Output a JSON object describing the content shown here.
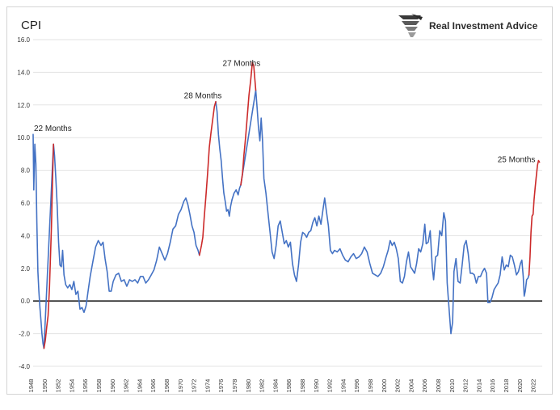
{
  "chart_data": {
    "type": "line",
    "title": "CPI",
    "xlabel": "",
    "ylabel": "",
    "ylim": [
      -4.0,
      16.0
    ],
    "xlim": [
      1948,
      2023
    ],
    "y_ticks": [
      "-4.0",
      "-2.0",
      "0.0",
      "2.0",
      "4.0",
      "6.0",
      "8.0",
      "10.0",
      "12.0",
      "14.0",
      "16.0"
    ],
    "x_ticks": [
      "1948",
      "1950",
      "1952",
      "1954",
      "1956",
      "1958",
      "1960",
      "1962",
      "1964",
      "1966",
      "1968",
      "1970",
      "1972",
      "1974",
      "1976",
      "1978",
      "1980",
      "1982",
      "1984",
      "1986",
      "1988",
      "1990",
      "1992",
      "1994",
      "1996",
      "1998",
      "2000",
      "2002",
      "2004",
      "2006",
      "2008",
      "2010",
      "2012",
      "2014",
      "2016",
      "2018",
      "2020",
      "2022"
    ],
    "grid": true,
    "reference_line": 0,
    "series": [
      {
        "color": "#4472c4",
        "points": [
          [
            1948.0,
            10.2
          ],
          [
            1948.1,
            6.8
          ],
          [
            1948.25,
            9.6
          ],
          [
            1948.4,
            8.4
          ],
          [
            1948.55,
            4.8
          ],
          [
            1948.7,
            1.8
          ],
          [
            1948.85,
            0.6
          ],
          [
            1949.0,
            -0.4
          ],
          [
            1949.15,
            -1.2
          ],
          [
            1949.3,
            -2.0
          ],
          [
            1949.45,
            -2.6
          ],
          [
            1949.6,
            -2.9
          ],
          [
            1951.0,
            9.6
          ],
          [
            1951.15,
            8.9
          ],
          [
            1951.35,
            7.5
          ],
          [
            1951.55,
            5.8
          ],
          [
            1951.75,
            3.6
          ],
          [
            1951.95,
            2.2
          ],
          [
            1952.15,
            2.1
          ],
          [
            1952.35,
            3.1
          ],
          [
            1952.55,
            1.6
          ],
          [
            1952.8,
            1.0
          ],
          [
            1953.1,
            0.8
          ],
          [
            1953.4,
            1.0
          ],
          [
            1953.7,
            0.7
          ],
          [
            1954.0,
            1.2
          ],
          [
            1954.3,
            0.4
          ],
          [
            1954.6,
            0.6
          ],
          [
            1954.9,
            -0.5
          ],
          [
            1955.2,
            -0.4
          ],
          [
            1955.5,
            -0.7
          ],
          [
            1955.8,
            -0.3
          ],
          [
            1956.1,
            0.6
          ],
          [
            1956.4,
            1.5
          ],
          [
            1956.8,
            2.4
          ],
          [
            1957.2,
            3.3
          ],
          [
            1957.6,
            3.7
          ],
          [
            1958.0,
            3.4
          ],
          [
            1958.3,
            3.6
          ],
          [
            1958.6,
            2.6
          ],
          [
            1958.9,
            1.8
          ],
          [
            1959.2,
            0.6
          ],
          [
            1959.5,
            0.6
          ],
          [
            1959.8,
            1.2
          ],
          [
            1960.2,
            1.6
          ],
          [
            1960.6,
            1.7
          ],
          [
            1961.0,
            1.2
          ],
          [
            1961.4,
            1.3
          ],
          [
            1961.8,
            0.9
          ],
          [
            1962.2,
            1.3
          ],
          [
            1962.6,
            1.2
          ],
          [
            1963.0,
            1.3
          ],
          [
            1963.4,
            1.1
          ],
          [
            1963.8,
            1.5
          ],
          [
            1964.2,
            1.5
          ],
          [
            1964.6,
            1.1
          ],
          [
            1965.0,
            1.3
          ],
          [
            1965.4,
            1.6
          ],
          [
            1965.8,
            1.9
          ],
          [
            1966.2,
            2.5
          ],
          [
            1966.6,
            3.3
          ],
          [
            1967.0,
            2.9
          ],
          [
            1967.4,
            2.5
          ],
          [
            1967.8,
            2.9
          ],
          [
            1968.2,
            3.6
          ],
          [
            1968.6,
            4.4
          ],
          [
            1969.0,
            4.6
          ],
          [
            1969.4,
            5.3
          ],
          [
            1969.8,
            5.6
          ],
          [
            1970.2,
            6.1
          ],
          [
            1970.5,
            6.3
          ],
          [
            1970.8,
            5.9
          ],
          [
            1971.1,
            5.3
          ],
          [
            1971.4,
            4.6
          ],
          [
            1971.7,
            4.2
          ],
          [
            1972.0,
            3.4
          ],
          [
            1972.3,
            3.1
          ],
          [
            1972.5,
            2.8
          ],
          [
            1977.3,
            6.2
          ],
          [
            1977.6,
            6.6
          ],
          [
            1977.9,
            6.8
          ],
          [
            1978.2,
            6.5
          ],
          [
            1978.4,
            6.9
          ],
          [
            1978.6,
            7.1
          ],
          [
            1980.8,
            12.9
          ],
          [
            1981.0,
            11.8
          ],
          [
            1981.2,
            10.6
          ],
          [
            1981.4,
            9.8
          ],
          [
            1981.6,
            11.2
          ],
          [
            1981.8,
            9.8
          ],
          [
            1982.0,
            7.5
          ],
          [
            1982.3,
            6.6
          ],
          [
            1982.6,
            5.4
          ],
          [
            1982.9,
            4.2
          ],
          [
            1983.2,
            3.0
          ],
          [
            1983.5,
            2.6
          ],
          [
            1983.8,
            3.4
          ],
          [
            1984.1,
            4.6
          ],
          [
            1984.4,
            4.9
          ],
          [
            1984.7,
            4.2
          ],
          [
            1985.0,
            3.5
          ],
          [
            1985.3,
            3.7
          ],
          [
            1985.6,
            3.3
          ],
          [
            1985.9,
            3.6
          ],
          [
            1986.2,
            2.3
          ],
          [
            1986.5,
            1.6
          ],
          [
            1986.8,
            1.2
          ],
          [
            1987.1,
            2.2
          ],
          [
            1987.4,
            3.6
          ],
          [
            1987.7,
            4.2
          ],
          [
            1988.0,
            4.1
          ],
          [
            1988.3,
            3.9
          ],
          [
            1988.6,
            4.2
          ],
          [
            1988.9,
            4.3
          ],
          [
            1989.2,
            4.8
          ],
          [
            1989.5,
            5.1
          ],
          [
            1989.8,
            4.6
          ],
          [
            1990.1,
            5.2
          ],
          [
            1990.4,
            4.7
          ],
          [
            1990.7,
            5.6
          ],
          [
            1990.95,
            6.3
          ],
          [
            1991.2,
            5.5
          ],
          [
            1991.5,
            4.6
          ],
          [
            1991.8,
            3.1
          ],
          [
            1992.1,
            2.9
          ],
          [
            1992.4,
            3.1
          ],
          [
            1992.8,
            3.0
          ],
          [
            1993.2,
            3.2
          ],
          [
            1993.6,
            2.8
          ],
          [
            1994.0,
            2.5
          ],
          [
            1994.4,
            2.4
          ],
          [
            1994.8,
            2.7
          ],
          [
            1995.2,
            2.9
          ],
          [
            1995.6,
            2.6
          ],
          [
            1996.0,
            2.7
          ],
          [
            1996.4,
            2.9
          ],
          [
            1996.8,
            3.3
          ],
          [
            1997.2,
            3.0
          ],
          [
            1997.6,
            2.3
          ],
          [
            1998.0,
            1.7
          ],
          [
            1998.4,
            1.6
          ],
          [
            1998.8,
            1.5
          ],
          [
            1999.2,
            1.7
          ],
          [
            1999.6,
            2.1
          ],
          [
            2000.0,
            2.7
          ],
          [
            2000.3,
            3.1
          ],
          [
            2000.6,
            3.7
          ],
          [
            2000.9,
            3.4
          ],
          [
            2001.2,
            3.6
          ],
          [
            2001.5,
            3.2
          ],
          [
            2001.8,
            2.6
          ],
          [
            2002.1,
            1.2
          ],
          [
            2002.4,
            1.1
          ],
          [
            2002.7,
            1.5
          ],
          [
            2003.0,
            2.4
          ],
          [
            2003.3,
            3.0
          ],
          [
            2003.6,
            2.1
          ],
          [
            2003.9,
            1.9
          ],
          [
            2004.2,
            1.7
          ],
          [
            2004.5,
            2.3
          ],
          [
            2004.8,
            3.2
          ],
          [
            2005.1,
            3.0
          ],
          [
            2005.4,
            3.5
          ],
          [
            2005.7,
            4.7
          ],
          [
            2005.9,
            3.5
          ],
          [
            2006.2,
            3.6
          ],
          [
            2006.5,
            4.3
          ],
          [
            2006.8,
            2.1
          ],
          [
            2007.0,
            1.3
          ],
          [
            2007.3,
            2.7
          ],
          [
            2007.6,
            2.8
          ],
          [
            2007.9,
            4.3
          ],
          [
            2008.2,
            4.0
          ],
          [
            2008.5,
            5.4
          ],
          [
            2008.75,
            4.9
          ],
          [
            2009.0,
            1.1
          ],
          [
            2009.3,
            -0.6
          ],
          [
            2009.55,
            -2.0
          ],
          [
            2009.8,
            -1.3
          ],
          [
            2010.0,
            1.8
          ],
          [
            2010.3,
            2.6
          ],
          [
            2010.6,
            1.2
          ],
          [
            2010.9,
            1.1
          ],
          [
            2011.2,
            2.2
          ],
          [
            2011.5,
            3.4
          ],
          [
            2011.8,
            3.7
          ],
          [
            2012.1,
            2.9
          ],
          [
            2012.4,
            1.7
          ],
          [
            2012.7,
            1.7
          ],
          [
            2013.0,
            1.6
          ],
          [
            2013.3,
            1.1
          ],
          [
            2013.6,
            1.5
          ],
          [
            2013.9,
            1.5
          ],
          [
            2014.2,
            1.8
          ],
          [
            2014.5,
            2.0
          ],
          [
            2014.8,
            1.7
          ],
          [
            2015.0,
            -0.1
          ],
          [
            2015.3,
            -0.1
          ],
          [
            2015.6,
            0.2
          ],
          [
            2015.9,
            0.7
          ],
          [
            2016.2,
            0.9
          ],
          [
            2016.5,
            1.1
          ],
          [
            2016.8,
            1.6
          ],
          [
            2017.1,
            2.7
          ],
          [
            2017.4,
            1.9
          ],
          [
            2017.7,
            2.2
          ],
          [
            2018.0,
            2.1
          ],
          [
            2018.3,
            2.8
          ],
          [
            2018.6,
            2.7
          ],
          [
            2018.9,
            2.2
          ],
          [
            2019.2,
            1.6
          ],
          [
            2019.5,
            1.8
          ],
          [
            2019.8,
            2.3
          ],
          [
            2020.0,
            2.5
          ],
          [
            2020.2,
            1.5
          ],
          [
            2020.35,
            0.3
          ],
          [
            2020.5,
            0.6
          ],
          [
            2020.7,
            1.3
          ],
          [
            2020.9,
            1.4
          ],
          [
            2021.05,
            1.6
          ]
        ]
      },
      {
        "color": "#cc2a2a",
        "points": [
          [
            1949.6,
            -2.9
          ],
          [
            1949.8,
            -2.4
          ],
          [
            1950.0,
            -1.6
          ],
          [
            1950.2,
            -0.9
          ],
          [
            1950.4,
            0.8
          ],
          [
            1950.55,
            2.6
          ],
          [
            1950.7,
            4.6
          ],
          [
            1950.85,
            7.2
          ],
          [
            1951.0,
            9.6
          ]
        ]
      },
      {
        "color": "#cc2a2a",
        "points": [
          [
            1972.5,
            2.8
          ],
          [
            1972.8,
            3.4
          ],
          [
            1973.0,
            3.9
          ],
          [
            1973.2,
            5.1
          ],
          [
            1973.45,
            6.4
          ],
          [
            1973.7,
            7.8
          ],
          [
            1973.95,
            9.4
          ],
          [
            1974.2,
            10.3
          ],
          [
            1974.45,
            11.1
          ],
          [
            1974.7,
            11.9
          ],
          [
            1974.9,
            12.2
          ]
        ]
      },
      {
        "color": "#cc2a2a",
        "points": [
          [
            1978.6,
            7.1
          ],
          [
            1978.85,
            7.8
          ],
          [
            1979.05,
            8.9
          ],
          [
            1979.3,
            10.0
          ],
          [
            1979.55,
            11.3
          ],
          [
            1979.8,
            12.6
          ],
          [
            1980.05,
            13.5
          ],
          [
            1980.3,
            14.6
          ],
          [
            1980.5,
            14.4
          ],
          [
            1980.8,
            12.9
          ]
        ]
      },
      {
        "color": "#cc2a2a",
        "points": [
          [
            2021.05,
            1.6
          ],
          [
            2021.2,
            2.7
          ],
          [
            2021.35,
            4.2
          ],
          [
            2021.5,
            5.2
          ],
          [
            2021.65,
            5.3
          ],
          [
            2021.8,
            6.2
          ],
          [
            2021.95,
            6.9
          ],
          [
            2022.1,
            7.5
          ],
          [
            2022.3,
            8.3
          ],
          [
            2022.45,
            8.6
          ],
          [
            2022.6,
            8.5
          ]
        ]
      }
    ],
    "blue_descent_1948": [
      [
        1974.9,
        12.2
      ],
      [
        1975.1,
        11.6
      ],
      [
        1975.3,
        10.2
      ],
      [
        1975.5,
        9.3
      ],
      [
        1975.7,
        8.6
      ],
      [
        1975.9,
        7.5
      ],
      [
        1976.1,
        6.6
      ],
      [
        1976.3,
        6.1
      ],
      [
        1976.5,
        5.5
      ],
      [
        1976.7,
        5.6
      ],
      [
        1976.9,
        5.2
      ],
      [
        1977.1,
        5.8
      ],
      [
        1977.3,
        6.2
      ]
    ],
    "annotations": [
      {
        "text": "22 Months",
        "x": 1950.9,
        "y": 10.4
      },
      {
        "text": "28 Months",
        "x": 1973.0,
        "y": 12.4
      },
      {
        "text": "27 Months",
        "x": 1978.7,
        "y": 14.4
      },
      {
        "text": "25 Months",
        "x": 2019.2,
        "y": 8.5
      }
    ]
  },
  "brand": {
    "name": "Real Investment Advice",
    "logo_icon": "eagle-logo-icon"
  },
  "colors": {
    "cpi_line": "#4472c4",
    "highlight": "#cc2a2a",
    "axis": "#222222",
    "grid": "#e3e3e3"
  }
}
